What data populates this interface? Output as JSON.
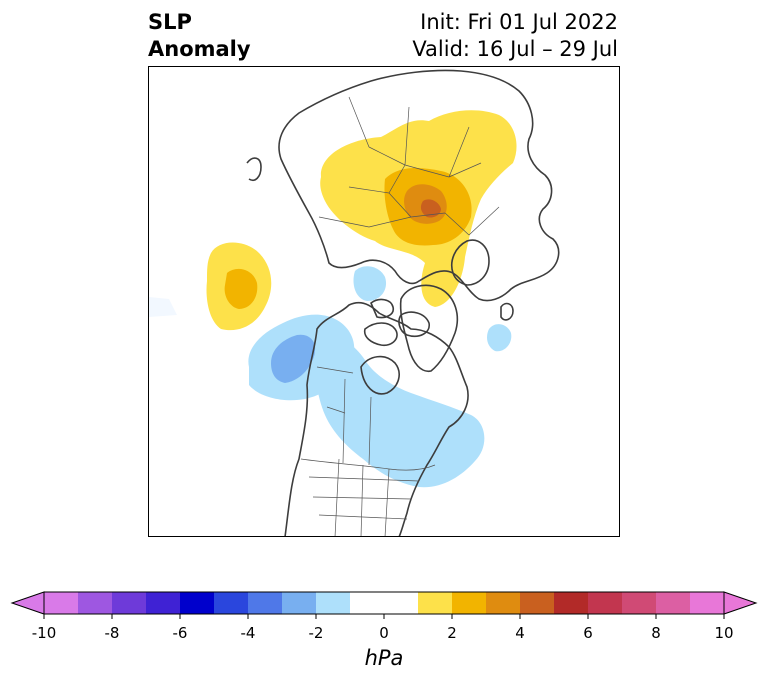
{
  "title": {
    "left_line1": "SLP",
    "left_line2": "Anomaly",
    "right_line1": "Init: Fri 01 Jul 2022",
    "right_line2": "Valid: 16 Jul – 29 Jul"
  },
  "colorbar": {
    "unit": "hPa",
    "ticks": [
      "-10",
      "-8",
      "-6",
      "-4",
      "-2",
      "0",
      "2",
      "4",
      "6",
      "8",
      "10"
    ],
    "range": [
      -10,
      10
    ],
    "step": 1,
    "bins": [
      {
        "from": -10,
        "to": -9,
        "color": "#d97ae8"
      },
      {
        "from": -9,
        "to": -8,
        "color": "#9e57e1"
      },
      {
        "from": -8,
        "to": -7,
        "color": "#6e3ad9"
      },
      {
        "from": -7,
        "to": -6,
        "color": "#3f22d4"
      },
      {
        "from": -6,
        "to": -5,
        "color": "#0000cc"
      },
      {
        "from": -5,
        "to": -4,
        "color": "#2a46dd"
      },
      {
        "from": -4,
        "to": -3,
        "color": "#4f78e8"
      },
      {
        "from": -3,
        "to": -2,
        "color": "#78aff0"
      },
      {
        "from": -2,
        "to": -1,
        "color": "#aee0fb"
      },
      {
        "from": -1,
        "to": 0,
        "color": "#ffffff"
      },
      {
        "from": 0,
        "to": 1,
        "color": "#ffffff"
      },
      {
        "from": 1,
        "to": 2,
        "color": "#fde14a"
      },
      {
        "from": 2,
        "to": 3,
        "color": "#f2b400"
      },
      {
        "from": 3,
        "to": 4,
        "color": "#df8c10"
      },
      {
        "from": 4,
        "to": 5,
        "color": "#c9601f"
      },
      {
        "from": 5,
        "to": 6,
        "color": "#b22a28"
      },
      {
        "from": 6,
        "to": 7,
        "color": "#c2364f"
      },
      {
        "from": 7,
        "to": 8,
        "color": "#d04a75"
      },
      {
        "from": 8,
        "to": 9,
        "color": "#dc5fa3"
      },
      {
        "from": 9,
        "to": 10,
        "color": "#e877d8"
      }
    ]
  },
  "map": {
    "projection": "north-polar stereographic",
    "anomalies": [
      {
        "region": "Northern Europe / Scandinavia / western Russia",
        "sign": "positive",
        "peak_hpa": 4
      },
      {
        "region": "North Pacific (west of Alaska)",
        "sign": "positive",
        "peak_hpa": 3
      },
      {
        "region": "Gulf of Alaska",
        "sign": "negative",
        "peak_hpa": -3
      },
      {
        "region": "Canada / eastern North America / NW Atlantic",
        "sign": "negative",
        "peak_hpa": -2
      },
      {
        "region": "East Siberian Sea",
        "sign": "negative",
        "peak_hpa": -2
      },
      {
        "region": "North Atlantic near Iceland",
        "sign": "negative",
        "peak_hpa": -2
      }
    ]
  }
}
